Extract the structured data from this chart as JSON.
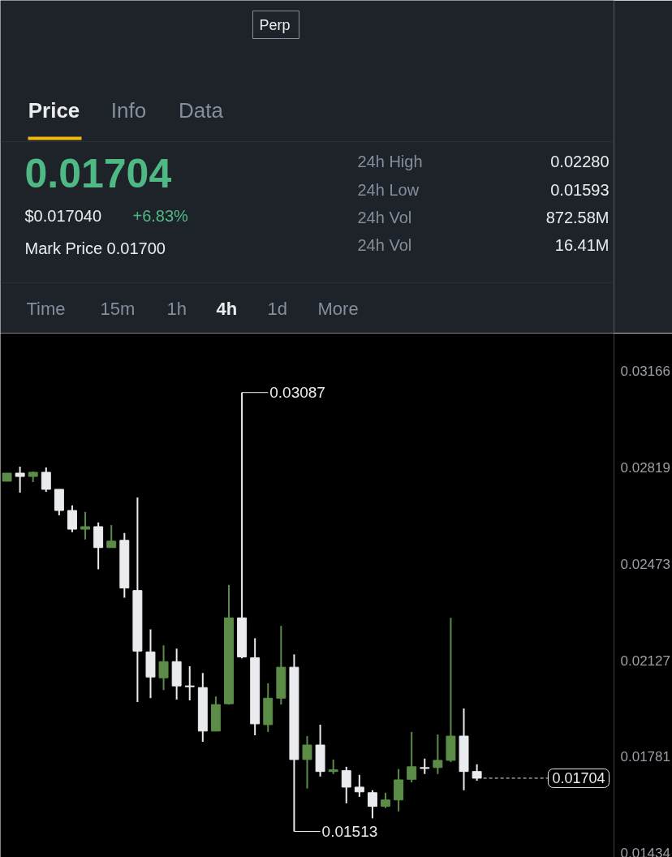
{
  "chart_data": {
    "type": "candlestick",
    "categories": [
      null,
      null,
      null,
      null,
      null,
      null,
      null,
      null,
      null,
      null,
      null,
      null,
      null,
      null,
      null,
      null,
      null,
      null,
      null,
      null,
      null,
      null,
      null,
      null,
      null,
      null,
      null,
      null,
      null,
      null,
      null,
      null,
      null,
      null,
      null,
      null,
      null,
      null,
      null,
      null,
      null,
      null,
      null,
      null,
      null,
      null,
      null
    ],
    "ohlc": [
      [
        0.02769,
        0.02798,
        0.02769,
        0.02798
      ],
      [
        0.02798,
        0.02821,
        0.02728,
        0.02786
      ],
      [
        0.02786,
        0.02804,
        0.02766,
        0.02801
      ],
      [
        0.02801,
        0.02818,
        0.02731,
        0.0274
      ],
      [
        0.0274,
        0.0274,
        0.02647,
        0.02664
      ],
      [
        0.02664,
        0.02682,
        0.02586,
        0.02597
      ],
      [
        0.02597,
        0.02659,
        0.0256,
        0.02606
      ],
      [
        0.02606,
        0.02621,
        0.02453,
        0.02531
      ],
      [
        0.02531,
        0.02612,
        0.02531,
        0.02554
      ],
      [
        0.02557,
        0.02583,
        0.02351,
        0.02386
      ],
      [
        0.02377,
        0.02711,
        0.01977,
        0.0216
      ],
      [
        0.02157,
        0.02238,
        0.01991,
        0.02067
      ],
      [
        0.02064,
        0.0218,
        0.0202,
        0.02122
      ],
      [
        0.02122,
        0.02169,
        0.01986,
        0.02035
      ],
      [
        0.02035,
        0.02105,
        0.01983,
        0.02032
      ],
      [
        0.02029,
        0.02081,
        0.01835,
        0.01873
      ],
      [
        0.01873,
        0.01997,
        0.01873,
        0.01968
      ],
      [
        0.01971,
        0.02397,
        0.01968,
        0.02279
      ],
      [
        0.02279,
        0.03087,
        0.02134,
        0.02139
      ],
      [
        0.02136,
        0.02206,
        0.01858,
        0.01899
      ],
      [
        0.01896,
        0.02044,
        0.0187,
        0.01991
      ],
      [
        0.01991,
        0.0225,
        0.01968,
        0.02102
      ],
      [
        0.02102,
        0.02148,
        0.01513,
        0.01771
      ],
      [
        0.01771,
        0.01855,
        0.01667,
        0.01823
      ],
      [
        0.01823,
        0.01896,
        0.0171,
        0.01728
      ],
      [
        0.01728,
        0.01771,
        0.01719,
        0.01734
      ],
      [
        0.01731,
        0.01745,
        0.01614,
        0.01672
      ],
      [
        0.01672,
        0.01716,
        0.01637,
        0.01655
      ],
      [
        0.01652,
        0.01661,
        0.0156,
        0.01603
      ],
      [
        0.01603,
        0.01652,
        0.01597,
        0.01626
      ],
      [
        0.01626,
        0.01737,
        0.01585,
        0.01698
      ],
      [
        0.017,
        0.0187,
        0.01689,
        0.01745
      ],
      [
        0.01742,
        0.01774,
        0.01719,
        0.01739
      ],
      [
        0.01742,
        0.01861,
        0.01719,
        0.01768
      ],
      [
        0.01768,
        0.02279,
        0.01762,
        0.01855
      ],
      [
        0.01855,
        0.01954,
        0.01661,
        0.01728
      ],
      [
        0.01728,
        0.01754,
        0.01695,
        0.01704
      ],
      null,
      null,
      null,
      null,
      null,
      null,
      null,
      null,
      null,
      null
    ],
    "colors": [
      "#5b8c48",
      "#eaebef",
      "#5b8c48",
      "#eaebef",
      "#eaebef",
      "#eaebef",
      "#5b8c48",
      "#eaebef",
      "#5b8c48",
      "#eaebef",
      "#eaebef",
      "#eaebef",
      "#5b8c48",
      "#eaebef",
      "#eaebef",
      "#eaebef",
      "#5b8c48",
      "#5b8c48",
      "#eaebef",
      "#eaebef",
      "#5b8c48",
      "#5b8c48",
      "#eaebef",
      "#5b8c48",
      "#eaebef",
      "#5b8c48",
      "#eaebef",
      "#eaebef",
      "#eaebef",
      "#5b8c48",
      "#5b8c48",
      "#5b8c48",
      "#eaebef",
      "#5b8c48",
      "#5b8c48",
      "#eaebef",
      "#eaebef",
      null,
      null,
      null,
      null,
      null,
      null,
      null,
      null,
      null,
      null
    ],
    "ylim": [
      0.0142,
      0.033
    ],
    "yticks": [
      0.03166,
      0.02819,
      0.02473,
      0.02127,
      0.01781,
      0.01434
    ],
    "tick_labels": "y",
    "ref_lines": [
      {
        "axis": "y",
        "value": 0.01704,
        "label": "0.01704",
        "color": "#eaebef",
        "line_style": "dashed"
      }
    ],
    "annotations": [
      "Perp",
      "Price",
      "Info",
      "Data",
      "0.01704",
      "$0.017040",
      "+6.83%",
      "Mark Price 0.01700",
      "24h High",
      "0.02280",
      "24h Low",
      "0.01593",
      "24h Vol",
      "872.58M",
      "24h Vol",
      "16.41M",
      "Time",
      "15m",
      "1h",
      "4h",
      "1d",
      "More",
      "0.03087",
      "0.01513"
    ]
  }
}
